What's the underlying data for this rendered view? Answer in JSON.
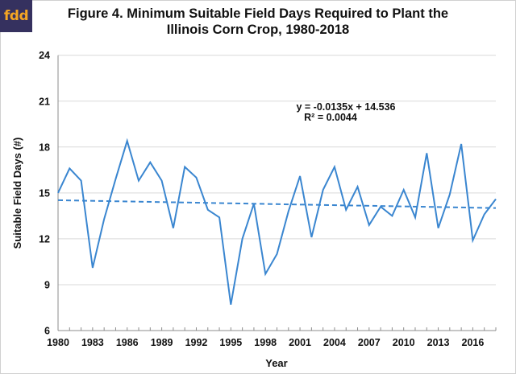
{
  "logo": {
    "text": "fdd",
    "background": "#35315f",
    "color": "#f5a623"
  },
  "chart_data": {
    "type": "line",
    "title": "Figure 4. Minimum Suitable Field Days Required to Plant the Illinois Corn Crop, 1980-2018",
    "title_lines": [
      "Figure 4. Minimum Suitable Field Days Required to Plant the",
      "Illinois Corn Crop, 1980-2018"
    ],
    "xlabel": "Year",
    "ylabel": "Suitable Field Days (#)",
    "ylim": [
      6,
      24
    ],
    "yticks": [
      6,
      9,
      12,
      15,
      18,
      21,
      24
    ],
    "xticks_labels": [
      "1980",
      "1983",
      "1986",
      "1989",
      "1992",
      "1995",
      "1998",
      "2001",
      "2004",
      "2007",
      "2010",
      "2013",
      "2016"
    ],
    "grid": true,
    "x": [
      1980,
      1981,
      1982,
      1983,
      1984,
      1985,
      1986,
      1987,
      1988,
      1989,
      1990,
      1991,
      1992,
      1993,
      1994,
      1995,
      1996,
      1997,
      1998,
      1999,
      2000,
      2001,
      2002,
      2003,
      2004,
      2005,
      2006,
      2007,
      2008,
      2009,
      2010,
      2011,
      2012,
      2013,
      2014,
      2015,
      2016,
      2017,
      2018
    ],
    "series": [
      {
        "name": "Suitable Field Days",
        "color": "#3a86d0",
        "values": [
          15.0,
          16.6,
          15.8,
          10.1,
          13.3,
          15.9,
          18.4,
          15.8,
          17.0,
          15.8,
          12.7,
          16.7,
          16.0,
          13.9,
          13.4,
          7.7,
          12.0,
          14.3,
          9.7,
          11.0,
          13.8,
          16.1,
          12.1,
          15.2,
          16.7,
          13.9,
          15.4,
          12.9,
          14.1,
          13.5,
          15.2,
          13.4,
          17.6,
          12.7,
          14.9,
          18.2,
          11.9,
          13.6,
          14.6
        ]
      }
    ],
    "trendline": {
      "type": "linear",
      "slope": -0.0135,
      "intercept": 14.536,
      "style": "dashed",
      "color": "#3a86d0",
      "equation_label": "y = -0.0135x + 14.536",
      "r2_label": "R² = 0.0044"
    }
  }
}
